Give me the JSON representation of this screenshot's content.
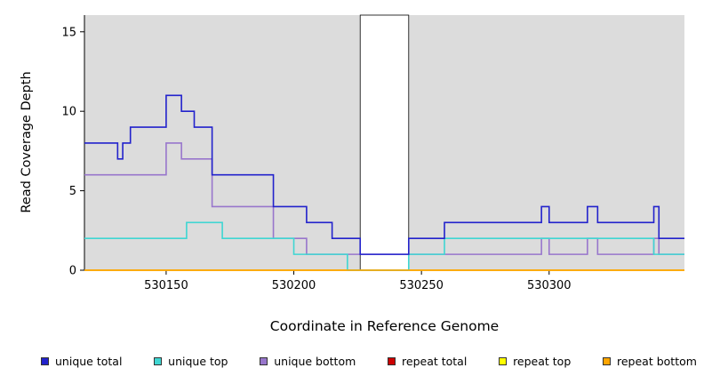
{
  "chart_data": {
    "type": "line",
    "subtype": "step",
    "title": "",
    "xlabel": "Coordinate in Reference Genome",
    "ylabel": "Read Coverage Depth",
    "xlim": [
      530118,
      530353
    ],
    "ylim": [
      0,
      16.05
    ],
    "xticks": [
      530150,
      530200,
      530250,
      530300
    ],
    "yticks": [
      0,
      5,
      10,
      15
    ],
    "grid": false,
    "plot_background": "#dcdcdc",
    "figure_background": "#ffffff",
    "gap_region": {
      "start": 530226,
      "end": 530245,
      "color": "#ffffff"
    },
    "legend_position": "bottom",
    "series": [
      {
        "name": "unique total",
        "color": "#2222cc",
        "steps": [
          [
            530118,
            8
          ],
          [
            530131,
            7
          ],
          [
            530133,
            8
          ],
          [
            530136,
            9
          ],
          [
            530150,
            11
          ],
          [
            530156,
            10
          ],
          [
            530161,
            9
          ],
          [
            530168,
            6
          ],
          [
            530192,
            4
          ],
          [
            530205,
            3
          ],
          [
            530215,
            2
          ],
          [
            530226,
            1
          ],
          [
            530245,
            2
          ],
          [
            530259,
            3
          ],
          [
            530297,
            4
          ],
          [
            530300,
            3
          ],
          [
            530315,
            4
          ],
          [
            530319,
            3
          ],
          [
            530341,
            4
          ],
          [
            530343,
            2
          ]
        ]
      },
      {
        "name": "unique top",
        "color": "#3fd6d2",
        "steps": [
          [
            530118,
            2
          ],
          [
            530158,
            3
          ],
          [
            530172,
            2
          ],
          [
            530200,
            1
          ],
          [
            530221,
            0
          ],
          [
            530245,
            1
          ],
          [
            530259,
            2
          ],
          [
            530341,
            1
          ]
        ]
      },
      {
        "name": "unique bottom",
        "color": "#9876cc",
        "steps": [
          [
            530118,
            6
          ],
          [
            530150,
            8
          ],
          [
            530156,
            7
          ],
          [
            530168,
            4
          ],
          [
            530192,
            2
          ],
          [
            530205,
            1
          ],
          [
            530297,
            2
          ],
          [
            530300,
            1
          ],
          [
            530315,
            2
          ],
          [
            530319,
            1
          ],
          [
            530341,
            2
          ],
          [
            530343,
            1
          ]
        ]
      },
      {
        "name": "repeat total",
        "color": "#cc0000",
        "steps": [
          [
            530118,
            0
          ]
        ]
      },
      {
        "name": "repeat top",
        "color": "#ffff00",
        "steps": [
          [
            530118,
            0
          ]
        ]
      },
      {
        "name": "repeat bottom",
        "color": "#ffa500",
        "steps": [
          [
            530118,
            0
          ]
        ]
      }
    ],
    "draw_order": [
      "repeat total",
      "repeat top",
      "unique bottom",
      "unique top",
      "unique total",
      "repeat bottom"
    ]
  }
}
